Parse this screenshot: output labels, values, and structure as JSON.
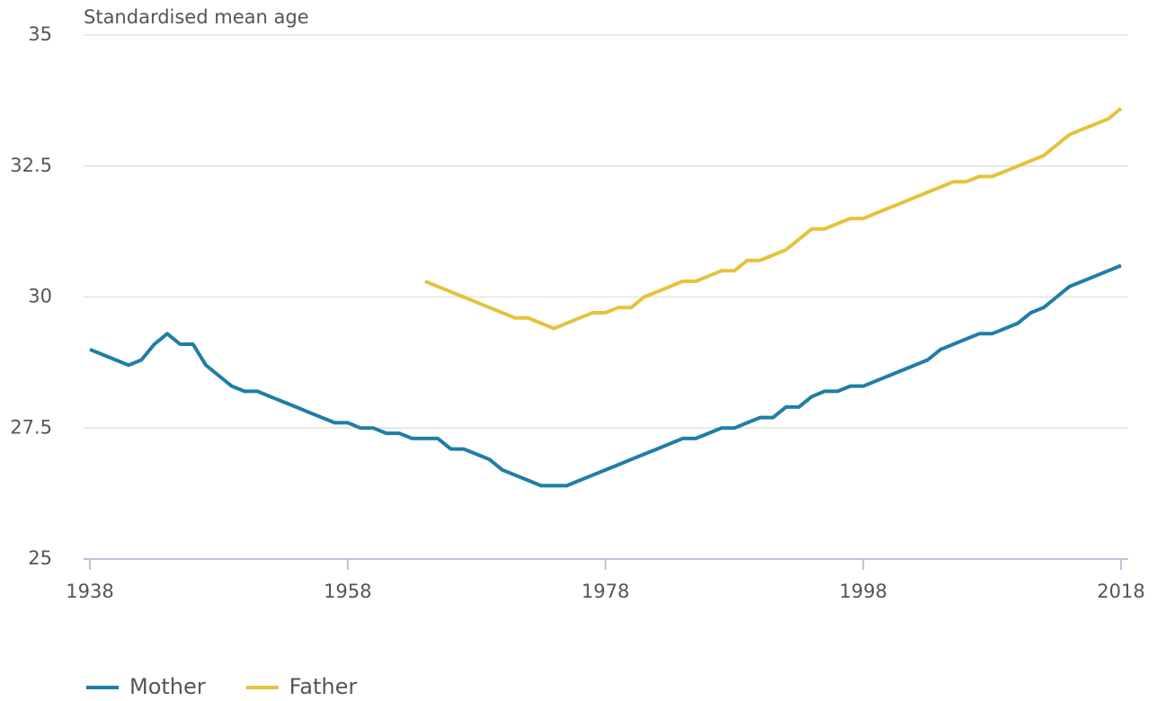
{
  "chart_data": {
    "type": "line",
    "y_label": "Standardised mean age",
    "x": [
      1938,
      1939,
      1940,
      1941,
      1942,
      1943,
      1944,
      1945,
      1946,
      1947,
      1948,
      1949,
      1950,
      1951,
      1952,
      1953,
      1954,
      1955,
      1956,
      1957,
      1958,
      1959,
      1960,
      1961,
      1962,
      1963,
      1964,
      1965,
      1966,
      1967,
      1968,
      1969,
      1970,
      1971,
      1972,
      1973,
      1974,
      1975,
      1976,
      1977,
      1978,
      1979,
      1980,
      1981,
      1982,
      1983,
      1984,
      1985,
      1986,
      1987,
      1988,
      1989,
      1990,
      1991,
      1992,
      1993,
      1994,
      1995,
      1996,
      1997,
      1998,
      1999,
      2000,
      2001,
      2002,
      2003,
      2004,
      2005,
      2006,
      2007,
      2008,
      2009,
      2010,
      2011,
      2012,
      2013,
      2014,
      2015,
      2016,
      2017,
      2018
    ],
    "series": [
      {
        "name": "Mother",
        "color": "#1f7ea6",
        "values": [
          29.0,
          28.9,
          28.8,
          28.7,
          28.8,
          29.1,
          29.3,
          29.1,
          29.1,
          28.7,
          28.5,
          28.3,
          28.2,
          28.2,
          28.1,
          28.0,
          27.9,
          27.8,
          27.7,
          27.6,
          27.6,
          27.5,
          27.5,
          27.4,
          27.4,
          27.3,
          27.3,
          27.3,
          27.1,
          27.1,
          27.0,
          26.9,
          26.7,
          26.6,
          26.5,
          26.4,
          26.4,
          26.4,
          26.5,
          26.6,
          26.7,
          26.8,
          26.9,
          27.0,
          27.1,
          27.2,
          27.3,
          27.3,
          27.4,
          27.5,
          27.5,
          27.6,
          27.7,
          27.7,
          27.9,
          27.9,
          28.1,
          28.2,
          28.2,
          28.3,
          28.3,
          28.4,
          28.5,
          28.6,
          28.7,
          28.8,
          29.0,
          29.1,
          29.2,
          29.3,
          29.3,
          29.4,
          29.5,
          29.7,
          29.8,
          30.0,
          30.2,
          30.3,
          30.4,
          30.5,
          30.6
        ]
      },
      {
        "name": "Father",
        "color": "#e5c23a",
        "values": [
          null,
          null,
          null,
          null,
          null,
          null,
          null,
          null,
          null,
          null,
          null,
          null,
          null,
          null,
          null,
          null,
          null,
          null,
          null,
          null,
          null,
          null,
          null,
          null,
          null,
          null,
          30.3,
          30.2,
          30.1,
          30.0,
          29.9,
          29.8,
          29.7,
          29.6,
          29.6,
          29.5,
          29.4,
          29.5,
          29.6,
          29.7,
          29.7,
          29.8,
          29.8,
          30.0,
          30.1,
          30.2,
          30.3,
          30.3,
          30.4,
          30.5,
          30.5,
          30.7,
          30.7,
          30.8,
          30.9,
          31.1,
          31.3,
          31.3,
          31.4,
          31.5,
          31.5,
          31.6,
          31.7,
          31.8,
          31.9,
          32.0,
          32.1,
          32.2,
          32.2,
          32.3,
          32.3,
          32.4,
          32.5,
          32.6,
          32.7,
          32.9,
          33.1,
          33.2,
          33.3,
          33.4,
          33.6
        ]
      }
    ],
    "xlim": [
      1938,
      2018
    ],
    "xticks": [
      1938,
      1958,
      1978,
      1998,
      2018
    ],
    "ylim": [
      25,
      35
    ],
    "yticks": [
      25,
      27.5,
      30,
      32.5,
      35
    ],
    "grid": true,
    "legend": "bottom-left"
  }
}
